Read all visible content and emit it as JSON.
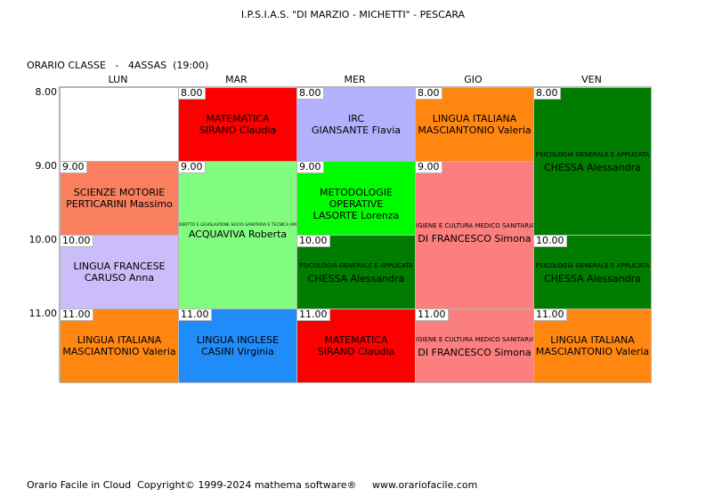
{
  "header": {
    "school": "I.P.S.I.A.S. \"DI MARZIO - MICHETTI\" - PESCARA",
    "class_line": "ORARIO CLASSE   -   4ASSAS  (19:00)"
  },
  "days": [
    "LUN",
    "MAR",
    "MER",
    "GIO",
    "VEN"
  ],
  "hours": [
    "8.00",
    "9.00",
    "10.00",
    "11.00"
  ],
  "lessons": {
    "lun_9": {
      "time": "9.00",
      "subject": "SCIENZE MOTORIE",
      "teacher": "PERTICARINI Massimo",
      "color": "#f97f5f"
    },
    "lun_10": {
      "time": "10.00",
      "subject": "LINGUA FRANCESE",
      "teacher": "CARUSO Anna",
      "color": "#cbbdf9"
    },
    "lun_11": {
      "time": "11.00",
      "subject": "LINGUA ITALIANA",
      "teacher": "MASCIANTONIO Valeria",
      "color": "#ff8610"
    },
    "mar_8": {
      "time": "8.00",
      "subject": "MATEMATICA",
      "teacher": "SIRANO Claudia",
      "color": "#fc0000"
    },
    "mar_9": {
      "time": "9.00",
      "subject": "DIRITTO E LEGISLAZIONE SOCIO-SANITARIA E TECNICA AMMINISTRATIVA",
      "teacher": "ACQUAVIVA Roberta",
      "color": "#80fc7f"
    },
    "mar_11": {
      "time": "11.00",
      "subject": "LINGUA INGLESE",
      "teacher": "CASINI Virginia",
      "color": "#1f8cf9"
    },
    "mer_8": {
      "time": "8.00",
      "subject": "IRC",
      "teacher": "GIANSANTE Flavia",
      "color": "#b3b0fc"
    },
    "mer_9": {
      "time": "9.00",
      "subject": "METODOLOGIE OPERATIVE",
      "teacher": "LASORTE Lorenza",
      "color": "#00fc00"
    },
    "mer_10": {
      "time": "10.00",
      "subject": "PSICOLOGIA GENERALE E APPLICATA",
      "teacher": "CHESSA Alessandra",
      "color": "#007c00"
    },
    "mer_11": {
      "time": "11.00",
      "subject": "MATEMATICA",
      "teacher": "SIRANO Claudia",
      "color": "#fc0000"
    },
    "gio_8": {
      "time": "8.00",
      "subject": "LINGUA ITALIANA",
      "teacher": "MASCIANTONIO Valeria",
      "color": "#ff8610"
    },
    "gio_9": {
      "time": "9.00",
      "subject": "IGIENE E CULTURA MEDICO SANITARIA",
      "teacher": "DI FRANCESCO Simona",
      "color": "#fc7f7f"
    },
    "gio_11": {
      "time": "11.00",
      "subject": "IGIENE E CULTURA MEDICO SANITARIA",
      "teacher": "DI FRANCESCO Simona",
      "color": "#fc7f7f"
    },
    "ven_8": {
      "time": "8.00",
      "subject": "PSICOLOGIA GENERALE E APPLICATA",
      "teacher": "CHESSA Alessandra",
      "color": "#007c00"
    },
    "ven_10": {
      "time": "10.00",
      "subject": "PSICOLOGIA GENERALE E APPLICATA",
      "teacher": "CHESSA Alessandra",
      "color": "#007c00"
    },
    "ven_11": {
      "time": "11.00",
      "subject": "LINGUA ITALIANA",
      "teacher": "MASCIANTONIO Valeria",
      "color": "#ff8610"
    }
  },
  "footer": "Orario Facile in Cloud  Copyright© 1999-2024 mathema software®     www.orariofacile.com"
}
